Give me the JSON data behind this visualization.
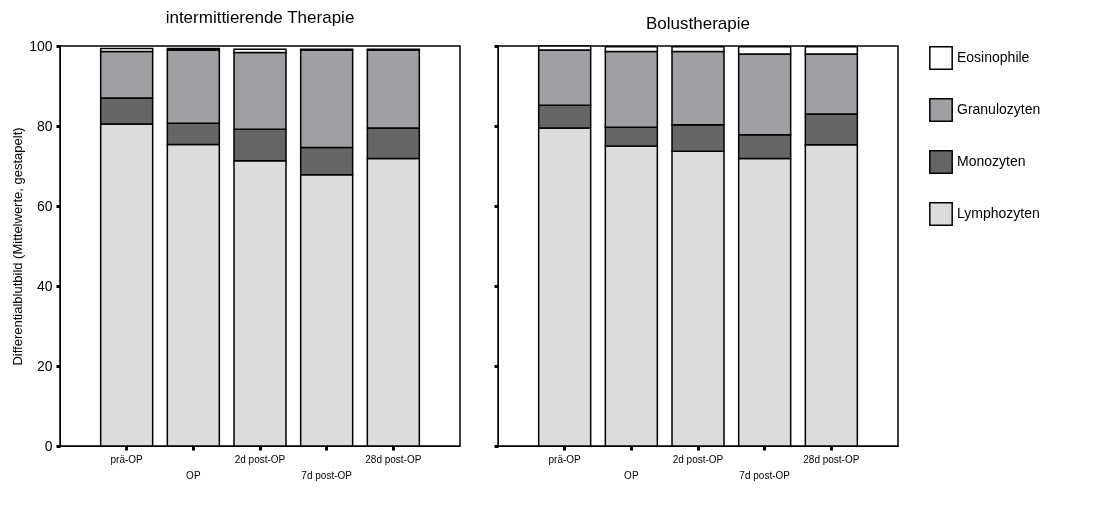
{
  "chart_data": [
    {
      "type": "bar",
      "stacked": true,
      "title": "intermittierende Therapie",
      "ylabel": "Differentialblutbild (Mittelwerte, gestapelt)",
      "categories": [
        "prä-OP",
        "OP",
        "2d post-OP",
        "7d post-OP",
        "28d post-OP"
      ],
      "ylim": [
        0,
        100
      ],
      "yticks": [
        0,
        20,
        40,
        60,
        80,
        100
      ],
      "grid": false,
      "legend": "right",
      "series": [
        {
          "name": "Lymphozyten",
          "color": "#dcdcdc",
          "values": [
            80.5,
            75.4,
            71.3,
            67.8,
            71.9
          ]
        },
        {
          "name": "Monozyten",
          "color": "#666666",
          "values": [
            6.5,
            5.3,
            7.9,
            6.8,
            7.6
          ]
        },
        {
          "name": "Granulozyten",
          "color": "#a0a0a4",
          "values": [
            11.6,
            18.3,
            19.2,
            24.4,
            19.5
          ]
        },
        {
          "name": "Eosinophile",
          "color": "#ffffff",
          "values": [
            0.8,
            0.4,
            0.8,
            0.2,
            0.2
          ]
        }
      ]
    },
    {
      "type": "bar",
      "stacked": true,
      "title": "Bolustherapie",
      "categories": [
        "prä-OP",
        "OP",
        "2d post-OP",
        "7d post-OP",
        "28d post-OP"
      ],
      "ylim": [
        0,
        100
      ],
      "yticks": [
        0,
        20,
        40,
        60,
        80,
        100
      ],
      "grid": false,
      "legend": "right",
      "tick_labels": "x",
      "series": [
        {
          "name": "Lymphozyten",
          "color": "#dcdcdc",
          "values": [
            79.5,
            75.0,
            73.7,
            71.9,
            75.3
          ]
        },
        {
          "name": "Monozyten",
          "color": "#666666",
          "values": [
            5.7,
            4.7,
            6.6,
            5.9,
            7.7
          ]
        },
        {
          "name": "Granulozyten",
          "color": "#a0a0a4",
          "values": [
            13.8,
            18.9,
            18.3,
            20.2,
            15.0
          ]
        },
        {
          "name": "Eosinophile",
          "color": "#ffffff",
          "values": [
            1.0,
            1.2,
            1.2,
            1.8,
            1.8
          ]
        }
      ]
    }
  ]
}
